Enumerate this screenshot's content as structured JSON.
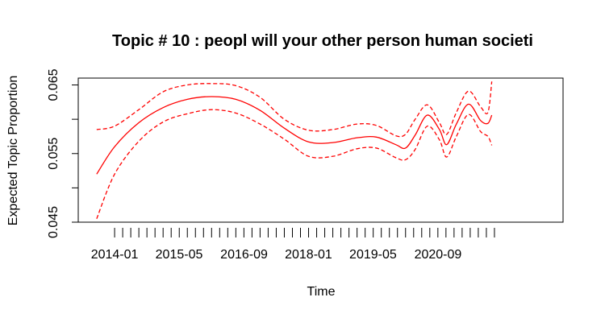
{
  "chart_data": {
    "type": "line",
    "title": "Topic # 10 :  peopl will your other person human societi",
    "xlabel": "Time",
    "ylabel": "Expected Topic Proportion",
    "xlim": [
      2013.25,
      2023.25
    ],
    "ylim": [
      0.045,
      0.066
    ],
    "x_ticks": [
      {
        "value": 2014.0,
        "label": "2014-01"
      },
      {
        "value": 2015.33,
        "label": "2015-05"
      },
      {
        "value": 2016.67,
        "label": "2016-09"
      },
      {
        "value": 2018.0,
        "label": "2018-01"
      },
      {
        "value": 2019.33,
        "label": "2019-05"
      },
      {
        "value": 2020.67,
        "label": "2020-09"
      }
    ],
    "y_ticks": [
      {
        "value": 0.045,
        "label": "0.045"
      },
      {
        "value": 0.05,
        "label": ""
      },
      {
        "value": 0.055,
        "label": "0.055"
      },
      {
        "value": 0.06,
        "label": ""
      },
      {
        "value": 0.065,
        "label": "0.065"
      }
    ],
    "rug_start": 2014.0,
    "rug_step": 0.1667,
    "rug_count": 48,
    "color": "#ff0000",
    "grid": false,
    "series": [
      {
        "role": "estimate",
        "style": "solid",
        "points": [
          [
            2013.63,
            0.052
          ],
          [
            2014.0,
            0.056
          ],
          [
            2014.5,
            0.0595
          ],
          [
            2015.0,
            0.0617
          ],
          [
            2015.5,
            0.0629
          ],
          [
            2016.0,
            0.0633
          ],
          [
            2016.5,
            0.0629
          ],
          [
            2017.0,
            0.0613
          ],
          [
            2017.5,
            0.0587
          ],
          [
            2018.0,
            0.0567
          ],
          [
            2018.5,
            0.0566
          ],
          [
            2019.0,
            0.0573
          ],
          [
            2019.4,
            0.0574
          ],
          [
            2019.8,
            0.0563
          ],
          [
            2020.0,
            0.0558
          ],
          [
            2020.2,
            0.0577
          ],
          [
            2020.45,
            0.0606
          ],
          [
            2020.7,
            0.0585
          ],
          [
            2020.85,
            0.0563
          ],
          [
            2021.05,
            0.0593
          ],
          [
            2021.3,
            0.0622
          ],
          [
            2021.55,
            0.0598
          ],
          [
            2021.7,
            0.0594
          ],
          [
            2021.78,
            0.0606
          ]
        ]
      },
      {
        "role": "upper",
        "style": "dashed",
        "points": [
          [
            2013.63,
            0.0585
          ],
          [
            2014.0,
            0.059
          ],
          [
            2014.5,
            0.0614
          ],
          [
            2015.0,
            0.064
          ],
          [
            2015.5,
            0.065
          ],
          [
            2016.0,
            0.0652
          ],
          [
            2016.5,
            0.0649
          ],
          [
            2017.0,
            0.0632
          ],
          [
            2017.5,
            0.06
          ],
          [
            2018.0,
            0.0584
          ],
          [
            2018.5,
            0.0585
          ],
          [
            2019.0,
            0.0593
          ],
          [
            2019.4,
            0.0591
          ],
          [
            2019.8,
            0.0576
          ],
          [
            2020.0,
            0.0578
          ],
          [
            2020.2,
            0.06
          ],
          [
            2020.45,
            0.0621
          ],
          [
            2020.7,
            0.0595
          ],
          [
            2020.85,
            0.0578
          ],
          [
            2021.05,
            0.061
          ],
          [
            2021.3,
            0.0641
          ],
          [
            2021.55,
            0.0618
          ],
          [
            2021.7,
            0.061
          ],
          [
            2021.78,
            0.0655
          ]
        ]
      },
      {
        "role": "lower",
        "style": "dashed",
        "points": [
          [
            2013.63,
            0.0455
          ],
          [
            2014.0,
            0.052
          ],
          [
            2014.5,
            0.0568
          ],
          [
            2015.0,
            0.0596
          ],
          [
            2015.5,
            0.0608
          ],
          [
            2016.0,
            0.0614
          ],
          [
            2016.5,
            0.0609
          ],
          [
            2017.0,
            0.0593
          ],
          [
            2017.5,
            0.0571
          ],
          [
            2018.0,
            0.0546
          ],
          [
            2018.5,
            0.0546
          ],
          [
            2019.0,
            0.0557
          ],
          [
            2019.4,
            0.0558
          ],
          [
            2019.8,
            0.0544
          ],
          [
            2020.0,
            0.0541
          ],
          [
            2020.2,
            0.0556
          ],
          [
            2020.45,
            0.059
          ],
          [
            2020.7,
            0.057
          ],
          [
            2020.85,
            0.0545
          ],
          [
            2021.05,
            0.0575
          ],
          [
            2021.3,
            0.0607
          ],
          [
            2021.55,
            0.0582
          ],
          [
            2021.7,
            0.0575
          ],
          [
            2021.78,
            0.0562
          ]
        ]
      }
    ]
  }
}
